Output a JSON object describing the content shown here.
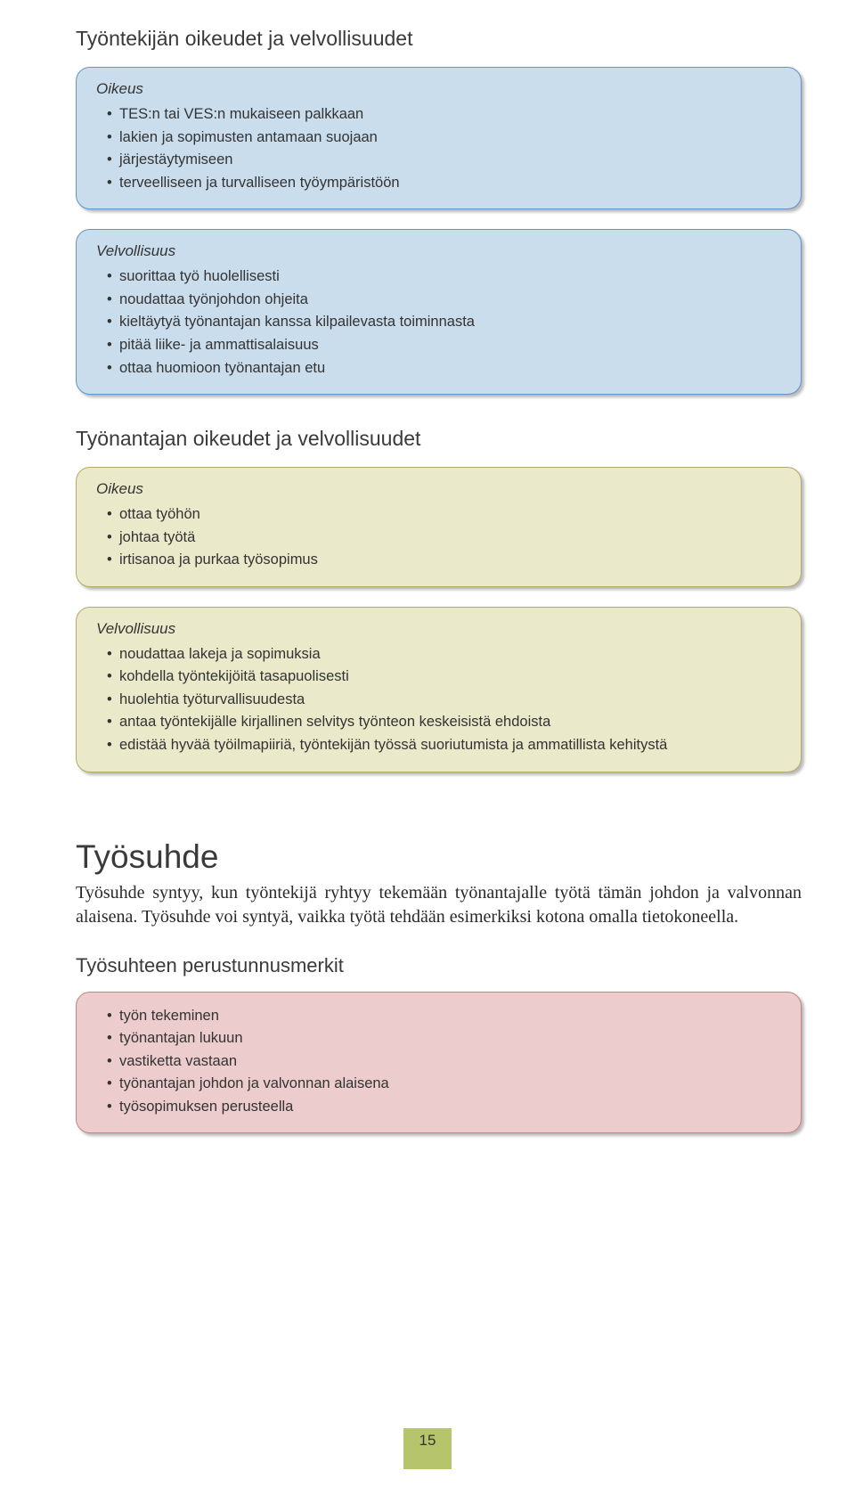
{
  "colors": {
    "blue_bg": "#cadded",
    "blue_border": "#6694c8",
    "yellow_bg": "#eaeacb",
    "yellow_border": "#b4ab68",
    "pink_bg": "#eccccc",
    "pink_border": "#c78383",
    "pagebox_bg": "#b6c56b"
  },
  "section1": {
    "title": "Työntekijän oikeudet ja velvollisuudet",
    "oikeus": {
      "heading": "Oikeus",
      "items": [
        "TES:n tai VES:n mukaiseen palkkaan",
        "lakien ja sopimusten antamaan suojaan",
        "järjestäytymiseen",
        "terveelliseen ja turvalliseen työympäristöön"
      ]
    },
    "velvollisuus": {
      "heading": "Velvollisuus",
      "items": [
        "suorittaa työ huolellisesti",
        "noudattaa työnjohdon ohjeita",
        "kieltäytyä työnantajan kanssa kilpailevasta toiminnasta",
        "pitää liike- ja ammattisalaisuus",
        "ottaa huomioon työnantajan etu"
      ]
    }
  },
  "section2": {
    "title": "Työnantajan oikeudet ja velvollisuudet",
    "oikeus": {
      "heading": "Oikeus",
      "items": [
        "ottaa työhön",
        "johtaa työtä",
        "irtisanoa ja purkaa työsopimus"
      ]
    },
    "velvollisuus": {
      "heading": "Velvollisuus",
      "items": [
        "noudattaa lakeja ja sopimuksia",
        "kohdella työntekijöitä tasapuolisesti",
        "huolehtia työturvallisuudesta",
        "antaa työntekijälle kirjallinen selvitys työnteon keskeisistä ehdoista",
        "edistää hyvää työilmapiiriä, työntekijän työssä suoriutumista ja ammatillista kehitystä"
      ]
    }
  },
  "section3": {
    "title": "Työsuhde",
    "body": "Työsuhde syntyy, kun työntekijä ryhtyy tekemään työnantajalle työtä tämän johdon ja valvonnan alaisena. Työsuhde voi syntyä, vaikka työtä tehdään esimerkiksi kotona omalla tietokoneella.",
    "sub_heading": "Työsuhteen perustunnusmerkit",
    "items": [
      "työn tekeminen",
      "työnantajan lukuun",
      "vastiketta vastaan",
      "työnantajan johdon ja valvonnan alaisena",
      "työsopimuksen perusteella"
    ]
  },
  "page_number": "15"
}
